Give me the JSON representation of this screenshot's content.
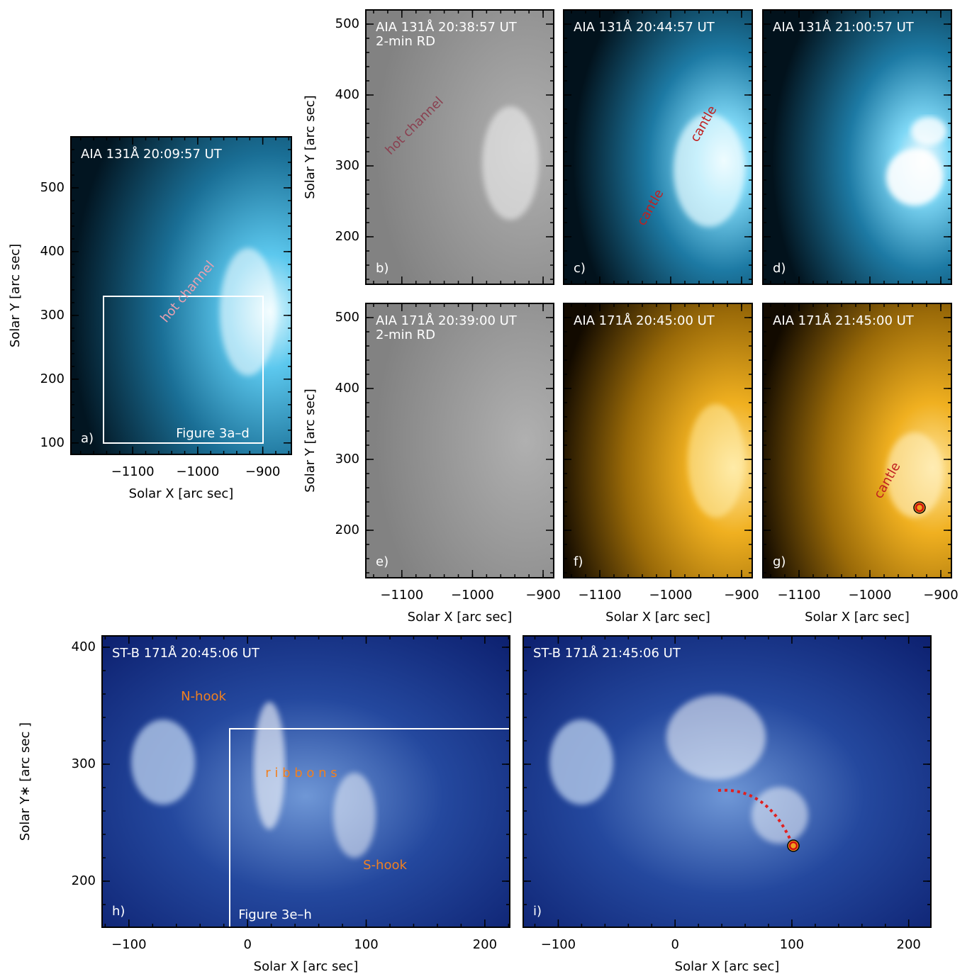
{
  "context_panel": {
    "label": "a)",
    "title": "AIA 131Å 20:09:57 UT",
    "xlim": [
      -1195,
      -856
    ],
    "ylim": [
      82,
      580
    ],
    "xticks": [
      {
        "value": -1100,
        "label": "−1100"
      },
      {
        "value": -1000,
        "label": "−1000"
      },
      {
        "value": -900,
        "label": "−900"
      }
    ],
    "yticks": [
      100,
      200,
      300,
      400,
      500
    ],
    "x_label": "Solar X [arc sec]",
    "y_label": "Solar Y [arc sec]",
    "annotations": [
      "hot channel",
      "Figure 3a–d"
    ]
  },
  "aia_panels": {
    "xlim": [
      -1151,
      -885
    ],
    "ylim": [
      133,
      520
    ],
    "xticks": [
      {
        "value": -1100,
        "label": "−1100"
      },
      {
        "value": -1000,
        "label": "−1000"
      },
      {
        "value": -900,
        "label": "−900"
      }
    ],
    "yticks": [
      200,
      300,
      400,
      500
    ],
    "x_label": "Solar X [arc sec]",
    "y_label": "Solar Y [arc sec]",
    "panels": [
      {
        "label": "b)",
        "title": "AIA 131Å 20:38:57 UT",
        "subtitle": "2-min RD",
        "annotations": [
          "hot channel"
        ]
      },
      {
        "label": "c)",
        "title": "AIA 131Å 20:44:57 UT",
        "annotations": [
          "cantle",
          "cantle"
        ]
      },
      {
        "label": "d)",
        "title": "AIA 131Å 21:00:57 UT"
      },
      {
        "label": "e)",
        "title": "AIA 171Å 20:39:00 UT",
        "subtitle": "2-min RD"
      },
      {
        "label": "f)",
        "title": "AIA 171Å 20:45:00 UT"
      },
      {
        "label": "g)",
        "title": "AIA 171Å 21:45:00 UT",
        "annotations": [
          "cantle"
        ]
      }
    ]
  },
  "stereo_panels": {
    "ylim": [
      160.6,
      409.7
    ],
    "yticks": [
      200,
      300,
      400
    ],
    "xticks": [
      {
        "value": -100,
        "label": "−100"
      },
      0,
      100,
      200
    ],
    "x_label": "Solar X [arc sec]",
    "y_label": "Solar Y∗ [arc sec ]",
    "panels": [
      {
        "label": "h)",
        "title": "ST-B 171Å 20:45:06 UT",
        "xlim": [
          -122.6,
          221
        ],
        "annotations": [
          "N-hook",
          "r i b b o n s",
          "S-hook",
          "Figure 3e–h"
        ]
      },
      {
        "label": "i)",
        "title": "ST-B 171Å 21:45:06 UT",
        "xlim": [
          -130,
          219
        ]
      }
    ]
  }
}
